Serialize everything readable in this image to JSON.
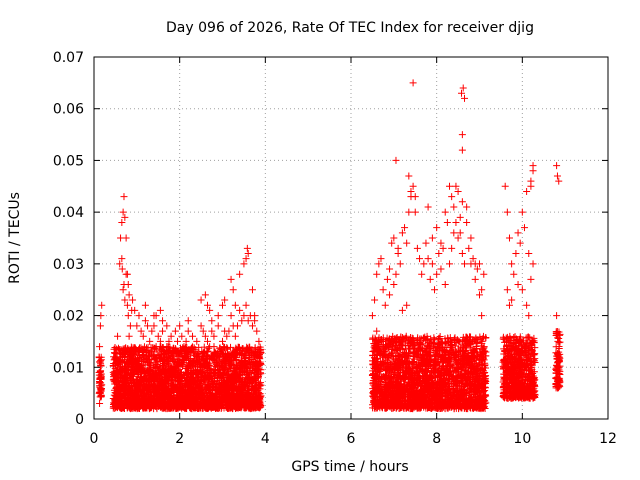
{
  "chart_data": {
    "type": "scatter",
    "title": "Day 096 of 2026, Rate Of TEC Index for receiver djig",
    "xlabel": "GPS time / hours",
    "ylabel": "ROTI / TECUs",
    "xlim": [
      0,
      12
    ],
    "ylim": [
      0,
      0.07
    ],
    "x_ticks": [
      0,
      2,
      4,
      6,
      8,
      10,
      12
    ],
    "y_ticks": [
      0,
      0.01,
      0.02,
      0.03,
      0.04,
      0.05,
      0.06,
      0.07
    ],
    "x_tick_labels": [
      "0",
      "2",
      "4",
      "6",
      "8",
      "10",
      "12"
    ],
    "y_tick_labels": [
      "0",
      "0.01",
      "0.02",
      "0.03",
      "0.04",
      "0.05",
      "0.06",
      "0.07"
    ],
    "grid": true,
    "marker": "+",
    "marker_color": "#ff0000",
    "series": [
      {
        "name": "ROTI",
        "x": [
          0.12,
          0.12,
          0.13,
          0.15,
          0.16,
          0.18,
          0.13,
          0.15,
          0.5,
          0.55,
          0.6,
          0.62,
          0.65,
          0.68,
          0.7,
          0.72,
          0.75,
          0.78,
          0.8,
          0.82,
          0.85,
          0.88,
          0.9,
          0.95,
          1.0,
          1.05,
          1.1,
          1.15,
          1.2,
          1.25,
          1.3,
          1.35,
          1.4,
          1.45,
          1.5,
          1.55,
          1.6,
          1.7,
          1.75,
          1.8,
          1.85,
          1.9,
          1.95,
          2.0,
          2.05,
          2.1,
          2.15,
          2.2,
          2.3,
          2.4,
          2.5,
          2.55,
          2.6,
          2.65,
          2.7,
          2.75,
          2.8,
          2.9,
          3.0,
          3.05,
          3.1,
          3.15,
          3.2,
          3.25,
          3.3,
          3.35,
          3.4,
          3.45,
          3.5,
          3.55,
          3.6,
          3.65,
          3.7,
          3.75,
          3.8,
          3.85,
          0.68,
          0.7,
          0.72,
          0.66,
          0.65,
          0.75,
          0.78,
          0.8,
          0.82,
          1.2,
          1.4,
          1.45,
          1.55,
          1.6,
          1.7,
          2.2,
          2.5,
          2.6,
          2.65,
          2.7,
          2.75,
          2.9,
          3.0,
          3.05,
          3.2,
          3.25,
          3.3,
          3.4,
          3.5,
          3.55,
          3.6,
          3.7,
          3.75,
          3.58,
          6.5,
          6.55,
          6.6,
          6.65,
          6.7,
          6.75,
          6.8,
          6.85,
          6.9,
          6.95,
          7.0,
          7.05,
          7.1,
          7.15,
          7.2,
          7.25,
          7.3,
          7.35,
          7.4,
          7.45,
          7.5,
          7.55,
          7.6,
          7.65,
          7.7,
          7.75,
          7.8,
          7.85,
          7.9,
          7.95,
          8.0,
          8.05,
          8.1,
          8.15,
          8.2,
          8.25,
          8.3,
          8.35,
          8.4,
          8.45,
          8.5,
          8.55,
          8.6,
          8.65,
          8.7,
          8.75,
          8.8,
          8.85,
          8.9,
          8.95,
          9.0,
          9.05,
          9.1,
          6.6,
          6.7,
          6.9,
          7.0,
          7.05,
          7.1,
          7.2,
          7.3,
          7.35,
          7.4,
          7.5,
          7.45,
          7.8,
          7.9,
          8.0,
          8.1,
          8.2,
          8.3,
          8.35,
          8.4,
          8.45,
          8.5,
          8.55,
          8.6,
          8.62,
          8.58,
          8.65,
          8.6,
          8.6,
          8.7,
          8.8,
          8.9,
          9.0,
          9.05,
          9.6,
          9.65,
          9.7,
          9.75,
          9.8,
          9.85,
          9.9,
          9.95,
          10.0,
          10.05,
          10.1,
          10.15,
          10.2,
          10.25,
          9.65,
          9.7,
          9.75,
          9.9,
          10.0,
          10.1,
          10.15,
          10.2,
          10.25,
          10.2,
          10.25,
          10.8,
          10.82,
          10.85,
          10.8,
          10.83,
          10.84,
          10.86,
          10.82
        ],
        "y": [
          0.009,
          0.012,
          0.014,
          0.018,
          0.02,
          0.022,
          0.003,
          0.005,
          0.012,
          0.016,
          0.03,
          0.035,
          0.038,
          0.04,
          0.043,
          0.039,
          0.028,
          0.022,
          0.02,
          0.016,
          0.018,
          0.021,
          0.023,
          0.021,
          0.018,
          0.02,
          0.017,
          0.016,
          0.019,
          0.018,
          0.015,
          0.017,
          0.018,
          0.014,
          0.016,
          0.015,
          0.017,
          0.014,
          0.015,
          0.016,
          0.013,
          0.017,
          0.015,
          0.018,
          0.016,
          0.014,
          0.015,
          0.017,
          0.016,
          0.015,
          0.018,
          0.017,
          0.016,
          0.015,
          0.014,
          0.017,
          0.016,
          0.018,
          0.015,
          0.017,
          0.016,
          0.017,
          0.02,
          0.018,
          0.016,
          0.018,
          0.021,
          0.019,
          0.02,
          0.022,
          0.019,
          0.02,
          0.018,
          0.019,
          0.017,
          0.015,
          0.025,
          0.026,
          0.023,
          0.029,
          0.031,
          0.035,
          0.028,
          0.026,
          0.024,
          0.022,
          0.02,
          0.02,
          0.021,
          0.019,
          0.018,
          0.019,
          0.023,
          0.024,
          0.022,
          0.021,
          0.019,
          0.02,
          0.022,
          0.023,
          0.027,
          0.025,
          0.022,
          0.028,
          0.03,
          0.031,
          0.032,
          0.025,
          0.02,
          0.033,
          0.02,
          0.023,
          0.028,
          0.03,
          0.031,
          0.025,
          0.022,
          0.027,
          0.029,
          0.034,
          0.035,
          0.05,
          0.033,
          0.03,
          0.036,
          0.037,
          0.034,
          0.04,
          0.043,
          0.045,
          0.04,
          0.033,
          0.031,
          0.028,
          0.03,
          0.034,
          0.031,
          0.027,
          0.03,
          0.025,
          0.028,
          0.032,
          0.034,
          0.033,
          0.04,
          0.038,
          0.045,
          0.043,
          0.041,
          0.038,
          0.035,
          0.039,
          0.032,
          0.03,
          0.038,
          0.033,
          0.03,
          0.031,
          0.027,
          0.029,
          0.03,
          0.025,
          0.028,
          0.017,
          0.014,
          0.024,
          0.026,
          0.028,
          0.032,
          0.021,
          0.022,
          0.047,
          0.044,
          0.043,
          0.065,
          0.041,
          0.035,
          0.037,
          0.029,
          0.026,
          0.03,
          0.033,
          0.036,
          0.045,
          0.044,
          0.036,
          0.055,
          0.064,
          0.063,
          0.062,
          0.052,
          0.042,
          0.041,
          0.035,
          0.03,
          0.024,
          0.02,
          0.045,
          0.04,
          0.035,
          0.03,
          0.028,
          0.032,
          0.036,
          0.034,
          0.04,
          0.037,
          0.044,
          0.032,
          0.027,
          0.03,
          0.025,
          0.022,
          0.023,
          0.026,
          0.025,
          0.022,
          0.02,
          0.046,
          0.048,
          0.045,
          0.049,
          0.049,
          0.047,
          0.046,
          0.02,
          0.015,
          0.01,
          0.007,
          0.006
        ]
      }
    ],
    "dense_bands": [
      {
        "x_range": [
          0.12,
          0.18
        ],
        "y_range": [
          0.004,
          0.012
        ]
      },
      {
        "x_range": [
          0.45,
          3.9
        ],
        "y_range": [
          0.002,
          0.014
        ]
      },
      {
        "x_range": [
          6.5,
          9.15
        ],
        "y_range": [
          0.002,
          0.016
        ]
      },
      {
        "x_range": [
          9.55,
          10.3
        ],
        "y_range": [
          0.004,
          0.016
        ]
      },
      {
        "x_range": [
          10.78,
          10.88
        ],
        "y_range": [
          0.006,
          0.017
        ]
      }
    ]
  }
}
